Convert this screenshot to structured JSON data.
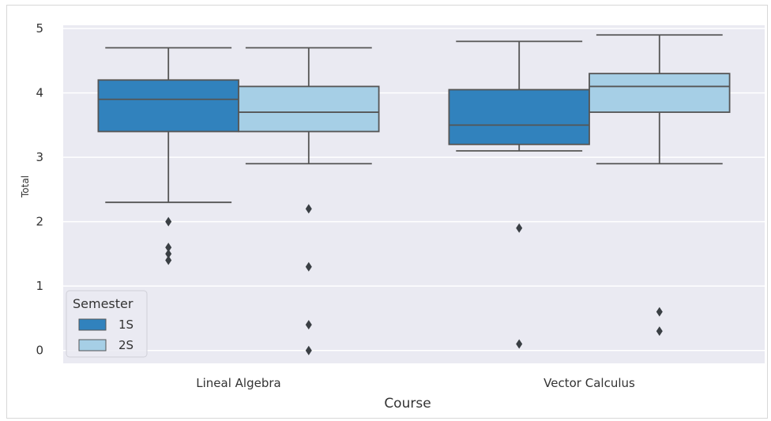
{
  "chart_data": {
    "type": "box",
    "title": "",
    "xlabel": "Course",
    "ylabel": "Total",
    "ylim": [
      -0.2,
      5.05
    ],
    "yticks": [
      0,
      1,
      2,
      3,
      4,
      5
    ],
    "grid": true,
    "categories": [
      "Lineal Algebra",
      "Vector Calculus"
    ],
    "legend": {
      "title": "Semester",
      "position": "lower-left"
    },
    "series": [
      {
        "name": "1S",
        "color": "#3182bd",
        "boxes": [
          {
            "whislo": 2.3,
            "q1": 3.4,
            "med": 3.9,
            "q3": 4.2,
            "whishi": 4.7,
            "fliers": [
              2.0,
              1.6,
              1.5,
              1.4
            ]
          },
          {
            "whislo": 3.1,
            "q1": 3.2,
            "med": 3.5,
            "q3": 4.05,
            "whishi": 4.8,
            "fliers": [
              1.9,
              0.1
            ]
          }
        ]
      },
      {
        "name": "2S",
        "color": "#a6cfe6",
        "boxes": [
          {
            "whislo": 2.9,
            "q1": 3.4,
            "med": 3.7,
            "q3": 4.1,
            "whishi": 4.7,
            "fliers": [
              2.2,
              1.3,
              0.4,
              0.0
            ]
          },
          {
            "whislo": 2.9,
            "q1": 3.7,
            "med": 4.1,
            "q3": 4.3,
            "whishi": 4.9,
            "fliers": [
              0.6,
              0.3
            ]
          }
        ]
      }
    ]
  }
}
